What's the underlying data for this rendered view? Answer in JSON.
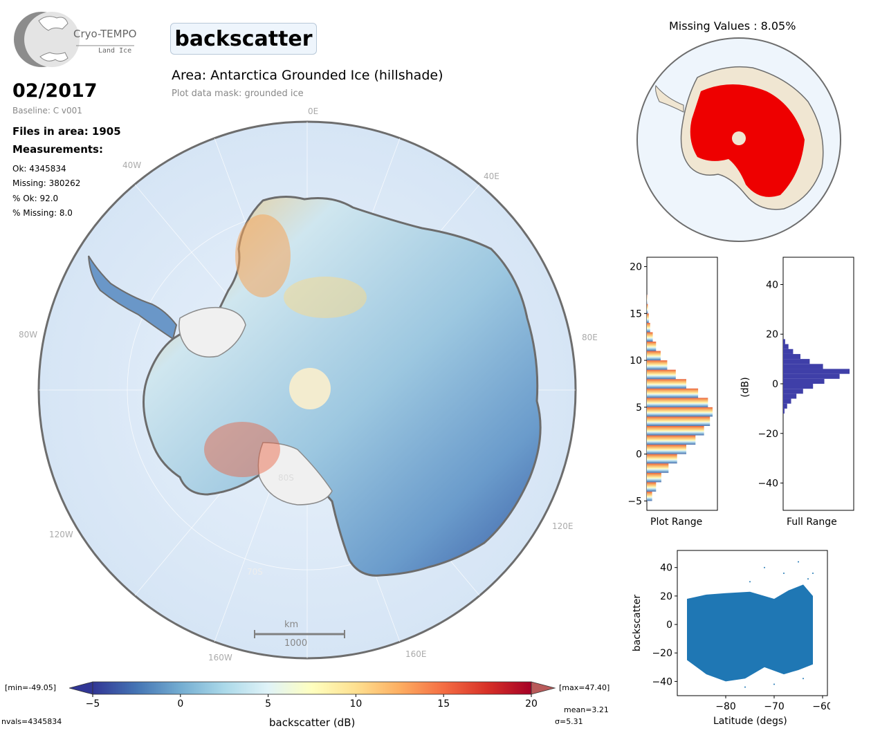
{
  "logo": {
    "name": "Cryo-TEMPO",
    "sub": "Land Ice"
  },
  "header": {
    "variable": "backscatter",
    "area": "Area: Antarctica Grounded Ice (hillshade)",
    "mask": "Plot data mask: grounded ice",
    "date": "02/2017",
    "baseline": "Baseline: C v001",
    "files": "Files in area: 1905",
    "measurements_title": "Measurements:",
    "ok": "Ok: 4345834",
    "missing": "Missing: 380262",
    "pct_ok": "% Ok: 92.0",
    "pct_missing": "% Missing: 8.0"
  },
  "map": {
    "lon_labels": [
      "0E",
      "40E",
      "80E",
      "120E",
      "160E",
      "160W",
      "120W",
      "80W",
      "40W"
    ],
    "lat_labels": [
      "80S",
      "70S"
    ],
    "scale_unit": "km",
    "scale_value": "1000"
  },
  "missing_map": {
    "title": "Missing Values : 8.05%"
  },
  "colorbar": {
    "min_label": "[min=-49.05]",
    "max_label": "[max=47.40]",
    "ticks": [
      "−5",
      "0",
      "5",
      "10",
      "15",
      "20"
    ],
    "label": "backscatter (dB)",
    "nvals": "nvals=4345834",
    "mean": "mean=3.21",
    "sigma": "σ=5.31",
    "colors": [
      "#313695",
      "#4575b4",
      "#74add1",
      "#abd9e9",
      "#e0f3f8",
      "#ffffbf",
      "#fee090",
      "#fdae61",
      "#f46d43",
      "#d73027",
      "#a50026"
    ]
  },
  "chart_data": [
    {
      "type": "bar",
      "orientation": "horizontal",
      "xlabel": "Plot Range",
      "ylim": [
        -6,
        21
      ],
      "yticks": [
        "−5",
        "0",
        "5",
        "10",
        "15",
        "20"
      ],
      "bins": [
        -5,
        -4,
        -3,
        -2,
        -1,
        0,
        1,
        2,
        3,
        4,
        5,
        6,
        7,
        8,
        9,
        10,
        11,
        12,
        13,
        14,
        15,
        16
      ],
      "values": [
        0.08,
        0.14,
        0.22,
        0.33,
        0.46,
        0.6,
        0.74,
        0.87,
        0.96,
        1.0,
        0.93,
        0.78,
        0.6,
        0.44,
        0.31,
        0.21,
        0.14,
        0.09,
        0.05,
        0.03,
        0.015,
        0.005
      ]
    },
    {
      "type": "bar",
      "orientation": "horizontal",
      "xlabel": "Full Range",
      "ylabel": "(dB)",
      "ylim": [
        -51,
        51
      ],
      "yticks": [
        "40",
        "20",
        "0",
        "−20",
        "−40"
      ],
      "color": "#3f3fa8",
      "bins": [
        -12,
        -10,
        -8,
        -6,
        -4,
        -2,
        0,
        2,
        4,
        6,
        8,
        10,
        12,
        14,
        16
      ],
      "values": [
        0.02,
        0.06,
        0.12,
        0.2,
        0.3,
        0.45,
        0.62,
        0.85,
        1.0,
        0.6,
        0.4,
        0.26,
        0.15,
        0.08,
        0.03
      ]
    },
    {
      "type": "scatter",
      "xlabel": "Latitude (degs)",
      "ylabel": "backscatter",
      "xlim": [
        -90,
        -59
      ],
      "ylim": [
        -50,
        52
      ],
      "xticks": [
        "−80",
        "−70",
        "−60"
      ],
      "yticks": [
        "40",
        "20",
        "0",
        "−20",
        "−40"
      ],
      "color": "#1f77b4",
      "band_upper": [
        [
          -88,
          18
        ],
        [
          -84,
          21
        ],
        [
          -80,
          22
        ],
        [
          -75,
          23
        ],
        [
          -72,
          20
        ],
        [
          -70,
          18
        ],
        [
          -67,
          24
        ],
        [
          -64,
          28
        ],
        [
          -62,
          20
        ]
      ],
      "band_lower": [
        [
          -88,
          -25
        ],
        [
          -84,
          -35
        ],
        [
          -80,
          -40
        ],
        [
          -76,
          -38
        ],
        [
          -72,
          -30
        ],
        [
          -68,
          -35
        ],
        [
          -65,
          -32
        ],
        [
          -62,
          -28
        ]
      ]
    }
  ]
}
